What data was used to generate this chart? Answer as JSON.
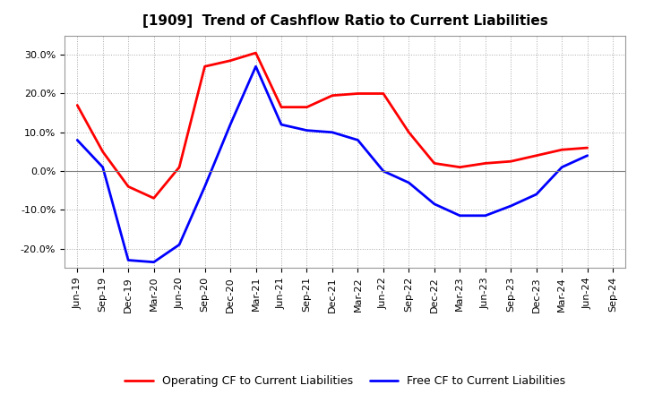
{
  "title": "[1909]  Trend of Cashflow Ratio to Current Liabilities",
  "x_labels": [
    "Jun-19",
    "Sep-19",
    "Dec-19",
    "Mar-20",
    "Jun-20",
    "Sep-20",
    "Dec-20",
    "Mar-21",
    "Jun-21",
    "Sep-21",
    "Dec-21",
    "Mar-22",
    "Jun-22",
    "Sep-22",
    "Dec-22",
    "Mar-23",
    "Jun-23",
    "Sep-23",
    "Dec-23",
    "Mar-24",
    "Jun-24",
    "Sep-24"
  ],
  "operating_cf": [
    0.17,
    0.05,
    -0.04,
    -0.07,
    0.01,
    0.27,
    0.285,
    0.305,
    0.165,
    0.165,
    0.195,
    0.2,
    0.2,
    0.1,
    0.02,
    0.01,
    0.02,
    0.025,
    0.04,
    0.055,
    0.06,
    null
  ],
  "free_cf": [
    0.08,
    0.01,
    -0.23,
    -0.235,
    -0.19,
    -0.04,
    0.12,
    0.27,
    0.12,
    0.105,
    0.1,
    0.08,
    0.0,
    -0.03,
    -0.085,
    -0.115,
    -0.115,
    -0.09,
    -0.06,
    0.01,
    0.04,
    null
  ],
  "operating_color": "#FF0000",
  "free_color": "#0000FF",
  "ylim": [
    -0.25,
    0.35
  ],
  "yticks": [
    -0.2,
    -0.1,
    0.0,
    0.1,
    0.2,
    0.3
  ],
  "background_color": "#FFFFFF",
  "grid_color": "#AAAAAA",
  "zero_line_color": "#808080",
  "title_fontsize": 11,
  "tick_fontsize": 8,
  "legend_fontsize": 9,
  "linewidth": 2.0
}
